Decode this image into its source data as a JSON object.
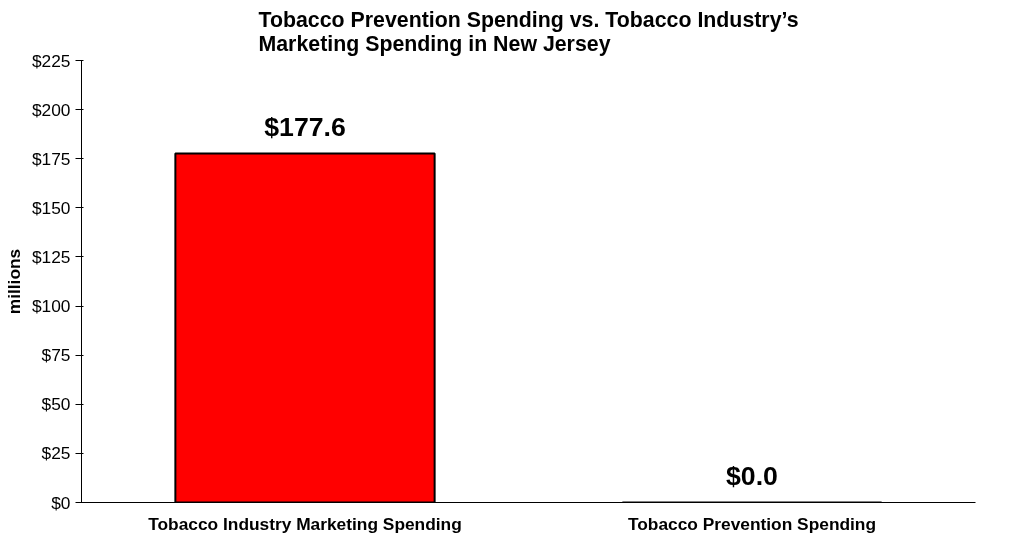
{
  "chart_data": {
    "type": "bar",
    "title": "Tobacco Prevention Spending vs. Tobacco Industry’s\nMarketing Spending in New Jersey",
    "ylabel": "millions",
    "categories": [
      "Tobacco Industry Marketing Spending",
      "Tobacco Prevention Spending"
    ],
    "values": [
      177.6,
      0.0
    ],
    "color": "#ff0000",
    "value_labels": [
      "$177.6",
      "$0.0"
    ],
    "ylim": [
      0,
      225
    ],
    "yticks": [
      {
        "value": 0,
        "label": "$0"
      },
      {
        "value": 25,
        "label": "$25"
      },
      {
        "value": 50,
        "label": "$50"
      },
      {
        "value": 75,
        "label": "$75"
      },
      {
        "value": 100,
        "label": "$100"
      },
      {
        "value": 125,
        "label": "$125"
      },
      {
        "value": 150,
        "label": "$150"
      },
      {
        "value": 175,
        "label": "$175"
      },
      {
        "value": 200,
        "label": "$200"
      },
      {
        "value": 225,
        "label": "$225"
      }
    ],
    "grid": false
  }
}
